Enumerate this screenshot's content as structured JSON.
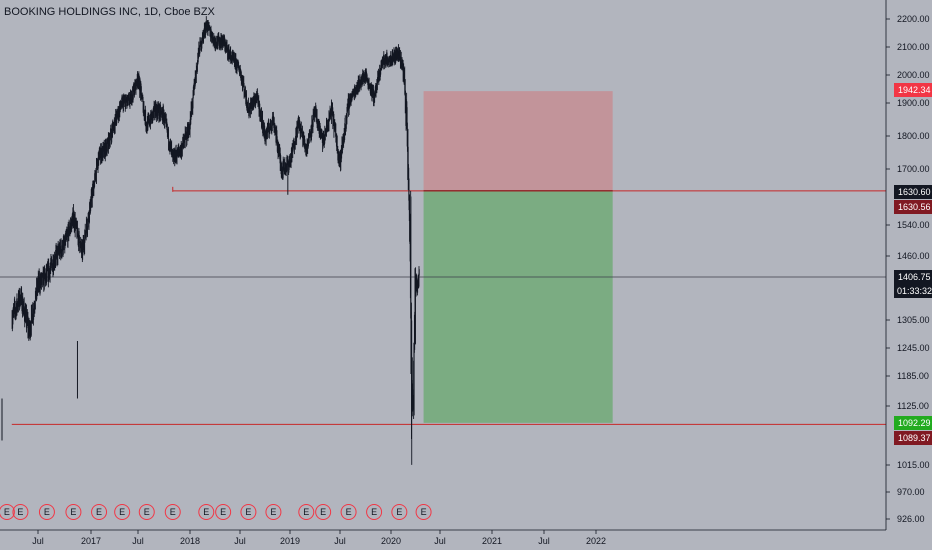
{
  "symbol_title": "BOOKING HOLDINGS INC, 1D, Cboe BZX",
  "colors": {
    "background": "#b2b5be",
    "candles": "#131722",
    "stop_zone": "#c2949a",
    "target_zone": "#7bac82",
    "red_line": "#c62828",
    "red_badge": "#f23645",
    "dark_red_badge": "#801922",
    "green_badge": "#22ab1f",
    "black_badge": "#131722",
    "earnings_marker": "#f23645"
  },
  "chart_data": {
    "type": "candlestick",
    "title": "BOOKING HOLDINGS INC, 1D, Cboe BZX",
    "ylim": [
      900,
      2240
    ],
    "y_ticks": [
      "2200.00",
      "2100.00",
      "2000.00",
      "1900.00",
      "1800.00",
      "1700.00",
      "1540.00",
      "1460.00",
      "1305.00",
      "1245.00",
      "1185.00",
      "1125.00",
      "1015.00",
      "970.00",
      "926.00"
    ],
    "x_ticks": [
      {
        "label": "Jul",
        "date": "2016-07"
      },
      {
        "label": "2017",
        "date": "2017-01"
      },
      {
        "label": "Jul",
        "date": "2017-07"
      },
      {
        "label": "2018",
        "date": "2018-01"
      },
      {
        "label": "Jul",
        "date": "2018-07"
      },
      {
        "label": "2019",
        "date": "2019-01"
      },
      {
        "label": "Jul",
        "date": "2019-07"
      },
      {
        "label": "2020",
        "date": "2020-01"
      },
      {
        "label": "Jul",
        "date": "2020-07"
      },
      {
        "label": "2021",
        "date": "2021-01"
      },
      {
        "label": "Jul",
        "date": "2021-07"
      },
      {
        "label": "2022",
        "date": "2022-01"
      }
    ],
    "price_path": [
      [
        "2016-04-01",
        1310
      ],
      [
        "2016-05-01",
        1360
      ],
      [
        "2016-06-01",
        1280
      ],
      [
        "2016-07-01",
        1390
      ],
      [
        "2016-08-01",
        1410
      ],
      [
        "2016-09-01",
        1460
      ],
      [
        "2016-10-01",
        1490
      ],
      [
        "2016-11-01",
        1560
      ],
      [
        "2016-12-01",
        1470
      ],
      [
        "2017-01-01",
        1600
      ],
      [
        "2017-02-01",
        1740
      ],
      [
        "2017-03-01",
        1760
      ],
      [
        "2017-04-01",
        1840
      ],
      [
        "2017-05-01",
        1900
      ],
      [
        "2017-06-01",
        1910
      ],
      [
        "2017-07-01",
        1990
      ],
      [
        "2017-08-01",
        1830
      ],
      [
        "2017-09-01",
        1880
      ],
      [
        "2017-10-01",
        1860
      ],
      [
        "2017-11-01",
        1730
      ],
      [
        "2017-12-01",
        1760
      ],
      [
        "2018-01-01",
        1830
      ],
      [
        "2018-02-01",
        2080
      ],
      [
        "2018-03-01",
        2180
      ],
      [
        "2018-04-01",
        2120
      ],
      [
        "2018-05-01",
        2120
      ],
      [
        "2018-06-01",
        2060
      ],
      [
        "2018-07-01",
        2020
      ],
      [
        "2018-08-01",
        1880
      ],
      [
        "2018-09-01",
        1920
      ],
      [
        "2018-10-01",
        1800
      ],
      [
        "2018-11-01",
        1850
      ],
      [
        "2018-12-01",
        1700
      ],
      [
        "2019-01-01",
        1720
      ],
      [
        "2019-02-01",
        1840
      ],
      [
        "2019-03-01",
        1760
      ],
      [
        "2019-04-01",
        1870
      ],
      [
        "2019-05-01",
        1780
      ],
      [
        "2019-06-01",
        1880
      ],
      [
        "2019-07-01",
        1720
      ],
      [
        "2019-08-01",
        1900
      ],
      [
        "2019-09-01",
        1960
      ],
      [
        "2019-10-01",
        2000
      ],
      [
        "2019-11-01",
        1920
      ],
      [
        "2019-12-01",
        2050
      ],
      [
        "2020-01-01",
        2060
      ],
      [
        "2020-02-01",
        2080
      ],
      [
        "2020-02-20",
        1990
      ],
      [
        "2020-03-01",
        1800
      ],
      [
        "2020-03-12",
        1500
      ],
      [
        "2020-03-18",
        1150
      ],
      [
        "2020-03-24",
        1140
      ],
      [
        "2020-04-01",
        1380
      ],
      [
        "2020-04-10",
        1400
      ],
      [
        "2020-04-15",
        1406.75
      ]
    ],
    "price_lines": [
      {
        "label": "1942.34",
        "value": 1942.34,
        "badge": "red_badge"
      },
      {
        "label": "1630.60",
        "value": 1630.6,
        "badge": "black_badge"
      },
      {
        "label": "1630.56",
        "value": 1630.56,
        "badge": "dark_red_badge"
      },
      {
        "label": "1406.75",
        "value": 1406.75,
        "badge": "black_badge"
      },
      {
        "label": "1092.29",
        "value": 1092.29,
        "badge": "green_badge"
      },
      {
        "label": "1089.37",
        "value": 1089.37,
        "badge": "dark_red_badge"
      }
    ],
    "countdown": "01:33:32",
    "position_tool": {
      "start_date": "2020-05-01",
      "end_date": "2022-03-01",
      "entry": 1630.6,
      "stop": 1942.34,
      "target": 1092.29
    },
    "horizontal_lines": [
      {
        "value": 1630.56,
        "from_date": "2017-11-01"
      },
      {
        "value": 1089.37,
        "from_date": "2016-04-01"
      }
    ],
    "earnings_dates": [
      "2016-03-15",
      "2016-05-01",
      "2016-08-01",
      "2016-11-01",
      "2017-02-01",
      "2017-05-01",
      "2017-08-01",
      "2017-11-01",
      "2018-03-01",
      "2018-05-01",
      "2018-08-01",
      "2018-11-01",
      "2019-03-01",
      "2019-05-01",
      "2019-08-01",
      "2019-11-01",
      "2020-02-01",
      "2020-05-01"
    ],
    "earnings_label": "E"
  }
}
